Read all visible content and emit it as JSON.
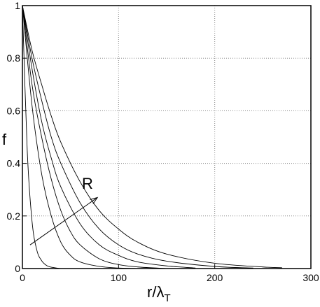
{
  "chart_data": {
    "type": "line",
    "xlabel": "r/λ",
    "xlabel_sub": "T",
    "ylabel": "f",
    "xlim": [
      0,
      300
    ],
    "ylim": [
      0,
      1
    ],
    "xticks": [
      0,
      100,
      200,
      300
    ],
    "yticks": [
      0,
      0.2,
      0.4,
      0.6,
      0.8,
      1
    ],
    "xtick_labels": [
      "0",
      "100",
      "200",
      "300"
    ],
    "ytick_labels": [
      "0",
      "0.2",
      "0.4",
      "0.6",
      "0.8",
      "1"
    ],
    "grid": true,
    "grid_style": "dotted",
    "annotation": {
      "text": "R",
      "arrow_from": [
        8,
        0.09
      ],
      "arrow_to": [
        78,
        0.27
      ]
    },
    "series": [
      {
        "x": [
          0,
          5,
          10,
          15,
          20,
          25,
          30,
          40
        ],
        "values": [
          1.0,
          0.45,
          0.18,
          0.07,
          0.03,
          0.012,
          0.005,
          0.0
        ]
      },
      {
        "x": [
          0,
          10,
          20,
          30,
          40,
          50,
          60,
          80,
          100,
          120
        ],
        "values": [
          1.0,
          0.62,
          0.36,
          0.2,
          0.1,
          0.05,
          0.025,
          0.008,
          0.002,
          0.0
        ]
      },
      {
        "x": [
          0,
          10,
          20,
          30,
          40,
          50,
          60,
          80,
          100,
          120,
          150
        ],
        "values": [
          1.0,
          0.7,
          0.5,
          0.34,
          0.22,
          0.14,
          0.09,
          0.037,
          0.015,
          0.006,
          0.0
        ]
      },
      {
        "x": [
          0,
          10,
          20,
          30,
          40,
          60,
          80,
          100,
          120,
          150,
          180
        ],
        "values": [
          1.0,
          0.76,
          0.56,
          0.42,
          0.31,
          0.17,
          0.09,
          0.05,
          0.025,
          0.01,
          0.002
        ]
      },
      {
        "x": [
          0,
          10,
          20,
          30,
          40,
          60,
          80,
          100,
          120,
          150,
          200,
          240
        ],
        "values": [
          1.0,
          0.8,
          0.64,
          0.5,
          0.4,
          0.25,
          0.15,
          0.09,
          0.055,
          0.028,
          0.008,
          0.002
        ]
      },
      {
        "x": [
          0,
          10,
          20,
          30,
          40,
          60,
          80,
          100,
          120,
          150,
          200,
          250,
          270
        ],
        "values": [
          1.0,
          0.83,
          0.7,
          0.58,
          0.48,
          0.33,
          0.22,
          0.15,
          0.1,
          0.055,
          0.02,
          0.006,
          0.003
        ]
      }
    ]
  }
}
